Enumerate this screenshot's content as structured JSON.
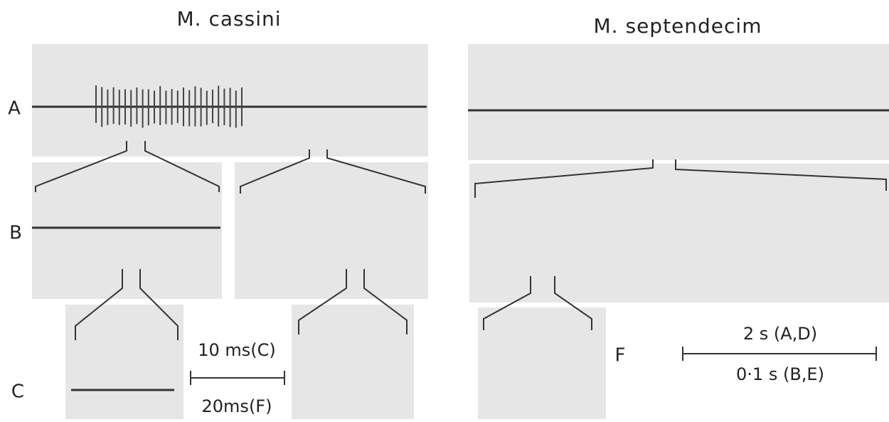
{
  "figure": {
    "titles": [
      "M. cassini",
      "M. septendecim"
    ],
    "row_labels": {
      "a": "A",
      "b": "B",
      "c": "C",
      "f": "F"
    },
    "scale_left": {
      "top": "10 ms(C)",
      "bottom": "20ms(F)"
    },
    "scale_right": {
      "top": "2 s (A,D)",
      "bottom": "0·1 s (B,E)"
    }
  }
}
